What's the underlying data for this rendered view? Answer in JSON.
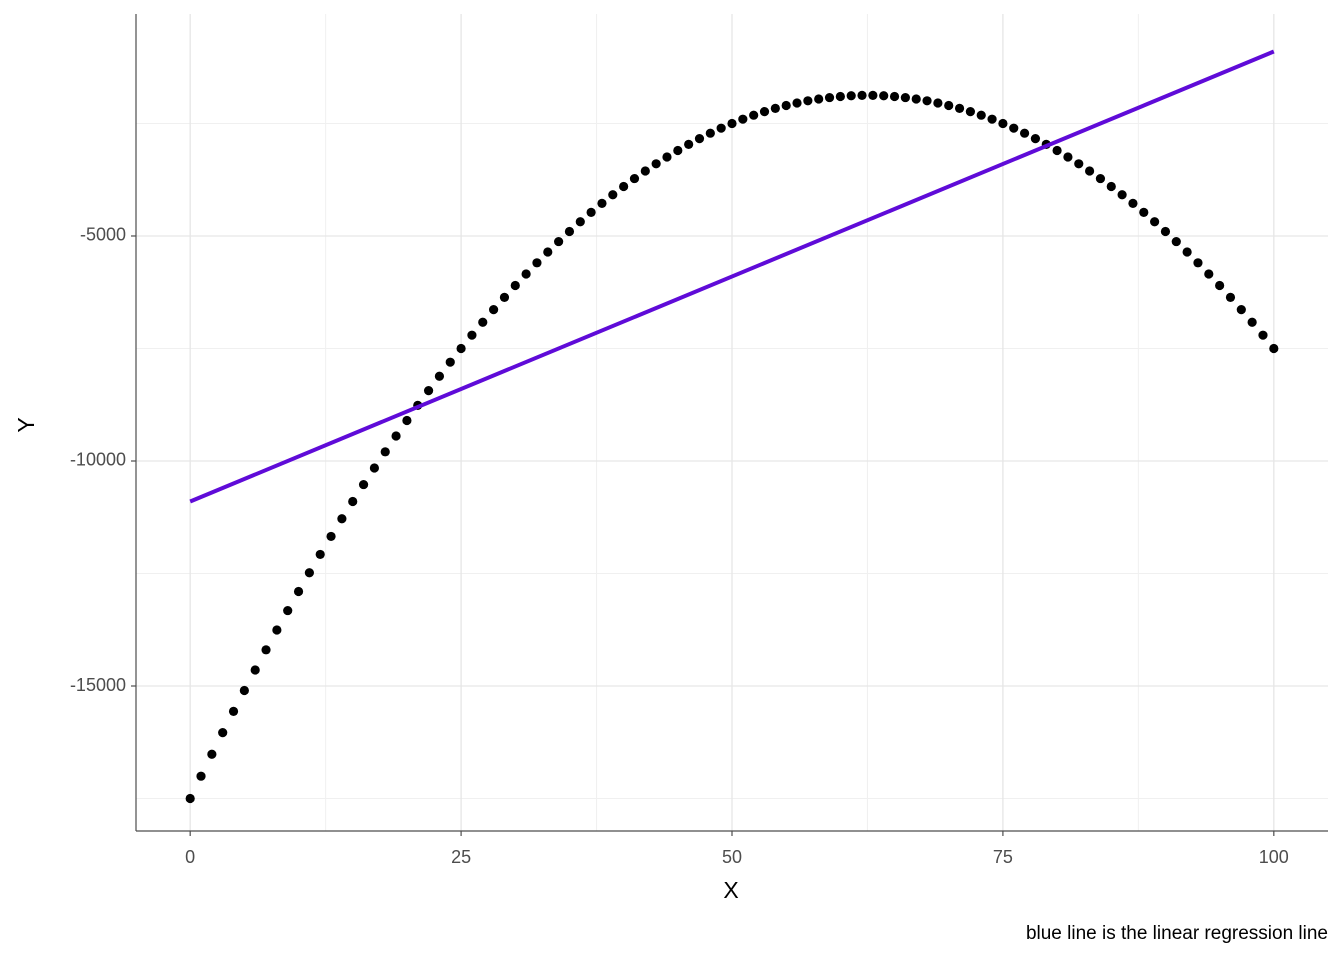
{
  "chart_data": {
    "type": "scatter",
    "x_label": "X",
    "y_label": "Y",
    "caption": "blue line is the linear regression line",
    "xlim": [
      -5,
      105
    ],
    "ylim": [
      -18222,
      -67
    ],
    "xticks": [
      0,
      25,
      50,
      75,
      100
    ],
    "yticks": [
      -15000,
      -10000,
      -5000
    ],
    "x_minor_grid": [
      12.5,
      37.5,
      62.5,
      87.5
    ],
    "y_minor_grid": [
      -17500,
      -12500,
      -7500,
      -2500
    ],
    "grid": true,
    "color": "#000000",
    "x": [
      0,
      1,
      2,
      3,
      4,
      5,
      6,
      7,
      8,
      9,
      10,
      11,
      12,
      13,
      14,
      15,
      16,
      17,
      18,
      19,
      20,
      21,
      22,
      23,
      24,
      25,
      26,
      27,
      28,
      29,
      30,
      31,
      32,
      33,
      34,
      35,
      36,
      37,
      38,
      39,
      40,
      41,
      42,
      43,
      44,
      45,
      46,
      47,
      48,
      49,
      50,
      51,
      52,
      53,
      54,
      55,
      56,
      57,
      58,
      59,
      60,
      61,
      62,
      63,
      64,
      65,
      66,
      67,
      68,
      69,
      70,
      71,
      72,
      73,
      74,
      75,
      76,
      77,
      78,
      79,
      80,
      81,
      82,
      83,
      84,
      85,
      86,
      87,
      88,
      89,
      90,
      91,
      92,
      93,
      94,
      95,
      96,
      97,
      98,
      99,
      100
    ],
    "values": [
      -17500,
      -17004,
      -16516,
      -16036,
      -15564,
      -15100,
      -14644,
      -14196,
      -13756,
      -13324,
      -12900,
      -12484,
      -12076,
      -11676,
      -11284,
      -10900,
      -10524,
      -10156,
      -9796,
      -9444,
      -9100,
      -8764,
      -8436,
      -8116,
      -7804,
      -7500,
      -7204,
      -6916,
      -6636,
      -6364,
      -6100,
      -5844,
      -5596,
      -5356,
      -5124,
      -4900,
      -4684,
      -4476,
      -4276,
      -4084,
      -3900,
      -3724,
      -3556,
      -3396,
      -3244,
      -3100,
      -2964,
      -2836,
      -2716,
      -2604,
      -2500,
      -2404,
      -2316,
      -2236,
      -2164,
      -2100,
      -2044,
      -1996,
      -1956,
      -1924,
      -1900,
      -1884,
      -1876,
      -1876,
      -1884,
      -1900,
      -1924,
      -1956,
      -1996,
      -2044,
      -2100,
      -2164,
      -2236,
      -2316,
      -2404,
      -2500,
      -2604,
      -2716,
      -2836,
      -2964,
      -3100,
      -3244,
      -3396,
      -3556,
      -3724,
      -3900,
      -4084,
      -4276,
      -4476,
      -4684,
      -4900,
      -5124,
      -5356,
      -5596,
      -5844,
      -6100,
      -6364,
      -6636,
      -6916,
      -7204,
      -7500
    ],
    "fit_line": {
      "x": [
        0,
        100
      ],
      "values": [
        -10900,
        -900
      ],
      "color": "#5f0bd8"
    }
  }
}
